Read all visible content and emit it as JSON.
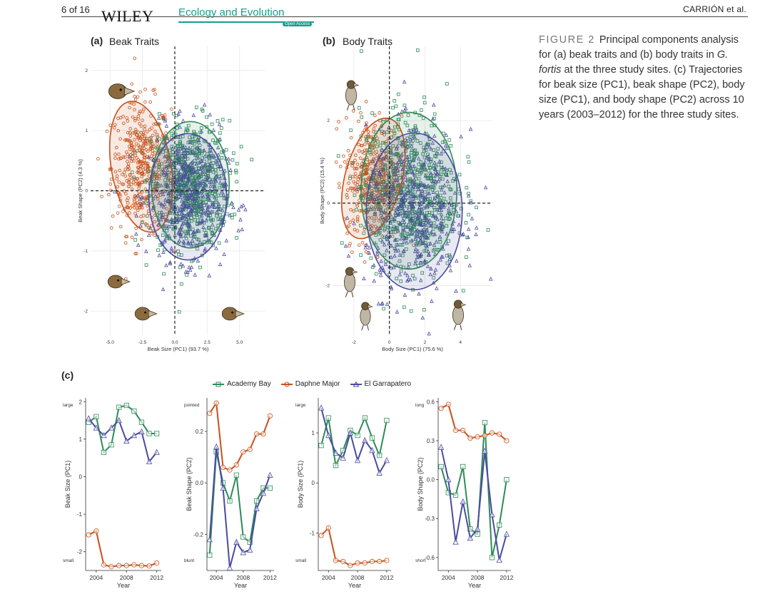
{
  "header": {
    "page_number": "6 of 16",
    "publisher": "WILEY",
    "journal": "Ecology and Evolution",
    "open_access": "Open Access",
    "running_author": "CARRIÓN et al."
  },
  "caption": {
    "label": "FIGURE 2",
    "text_1": "Principal components analysis for (a) beak traits and (b) body traits in ",
    "species": "G. fortis",
    "text_2": " at the three study sites. (c) Trajectories for beak size (PC1), beak shape (PC2), body size (PC1), and body shape (PC2) across 10 years (2003–2012) for the three study sites."
  },
  "panels": {
    "a": {
      "label": "(a)",
      "title": "Beak Traits",
      "xlabel": "Beak Size (PC1) (93.7 %)",
      "ylabel": "Beak Shape (PC2) (4.3 %)"
    },
    "b": {
      "label": "(b)",
      "title": "Body Traits",
      "xlabel": "Body Size (PC1) (75.6 %)",
      "ylabel": "Body Shape (PC2) (15.4 %)"
    },
    "c": {
      "label": "(c)"
    }
  },
  "legend": [
    "Academy Bay",
    "Daphne Major",
    "El Garrapatero"
  ],
  "colors": {
    "academy_bay": "#2e8b57",
    "daphne_major": "#c8501a",
    "el_garrapatero": "#4a4aa0"
  },
  "chart_data": [
    {
      "type": "scatter",
      "panel": "a",
      "title": "Beak Traits",
      "xlabel": "Beak Size (PC1) (93.7 %)",
      "ylabel": "Beak Shape (PC2) (4.3 %)",
      "x_ticks": [
        "-5.0",
        "-2.5",
        "0.0",
        "2.5",
        "5.0"
      ],
      "y_ticks": [
        "2",
        "1",
        "0",
        "-1",
        "-2"
      ],
      "xlim": [
        -6.5,
        7.0
      ],
      "ylim": [
        -2.4,
        2.4
      ],
      "series": [
        {
          "name": "Daphne Major",
          "marker": "circle",
          "center": [
            -2.6,
            0.4
          ],
          "ellipse_rx": 2.3,
          "ellipse_ry": 1.1
        },
        {
          "name": "Academy Bay",
          "marker": "square",
          "center": [
            1.2,
            0.1
          ],
          "ellipse_rx": 3.0,
          "ellipse_ry": 1.05
        },
        {
          "name": "El Garrapatero",
          "marker": "triangle",
          "center": [
            1.0,
            -0.1
          ],
          "ellipse_rx": 3.0,
          "ellipse_ry": 1.05
        }
      ]
    },
    {
      "type": "scatter",
      "panel": "b",
      "title": "Body Traits",
      "xlabel": "Body Size (PC1) (75.6 %)",
      "ylabel": "Body Shape (PC2) (15.4 %)",
      "x_ticks": [
        "-2",
        "0",
        "2",
        "4"
      ],
      "y_ticks": [
        "2",
        "0",
        "-2"
      ],
      "xlim": [
        -3.2,
        5.8
      ],
      "ylim": [
        -3.2,
        3.8
      ],
      "series": [
        {
          "name": "Daphne Major",
          "marker": "circle",
          "center": [
            -0.9,
            0.6
          ],
          "ellipse_rx": 1.6,
          "ellipse_ry": 1.5
        },
        {
          "name": "Academy Bay",
          "marker": "square",
          "center": [
            1.1,
            0.3
          ],
          "ellipse_rx": 2.7,
          "ellipse_ry": 1.9
        },
        {
          "name": "El Garrapatero",
          "marker": "triangle",
          "center": [
            1.4,
            -0.2
          ],
          "ellipse_rx": 2.7,
          "ellipse_ry": 1.9
        }
      ]
    },
    {
      "type": "line",
      "panel": "c1",
      "xlabel": "Year",
      "ylabel": "Beak Size (PC1)",
      "top_label": "large",
      "bottom_label": "small",
      "x": [
        2003,
        2004,
        2005,
        2006,
        2007,
        2008,
        2009,
        2010,
        2011,
        2012
      ],
      "x_ticks": [
        "2004",
        "2008",
        "2012"
      ],
      "y_ticks": [
        "2",
        "1",
        "0",
        "-1",
        "-2"
      ],
      "ylim": [
        -2.5,
        2.1
      ],
      "series": [
        {
          "name": "Academy Bay",
          "values": [
            1.45,
            1.6,
            0.65,
            0.85,
            1.85,
            1.9,
            1.75,
            1.45,
            1.15,
            1.15
          ]
        },
        {
          "name": "Daphne Major",
          "values": [
            -1.55,
            -1.45,
            -2.35,
            -2.4,
            -2.37,
            -2.37,
            -2.35,
            -2.37,
            -2.38,
            -2.3
          ]
        },
        {
          "name": "El Garrapatero",
          "values": [
            1.55,
            1.3,
            1.1,
            1.3,
            1.5,
            0.95,
            1.1,
            1.2,
            0.4,
            0.65
          ]
        }
      ]
    },
    {
      "type": "line",
      "panel": "c2",
      "xlabel": "Year",
      "ylabel": "Beak Shape (PC2)",
      "top_label": "pointed",
      "bottom_label": "blunt",
      "x": [
        2003,
        2004,
        2005,
        2006,
        2007,
        2008,
        2009,
        2010,
        2011,
        2012
      ],
      "x_ticks": [
        "2004",
        "2008",
        "2012"
      ],
      "y_ticks": [
        "0.2",
        "0.0",
        "-0.2"
      ],
      "ylim": [
        -0.34,
        0.33
      ],
      "series": [
        {
          "name": "Academy Bay",
          "values": [
            -0.28,
            0.12,
            0.0,
            -0.07,
            0.03,
            -0.21,
            -0.23,
            -0.07,
            -0.02,
            -0.02
          ]
        },
        {
          "name": "Daphne Major",
          "values": [
            0.27,
            0.31,
            0.06,
            0.05,
            0.07,
            0.12,
            0.13,
            0.19,
            0.19,
            0.26
          ]
        },
        {
          "name": "El Garrapatero",
          "values": [
            -0.22,
            0.14,
            -0.02,
            -0.33,
            -0.23,
            -0.27,
            -0.26,
            -0.1,
            -0.04,
            0.03
          ]
        }
      ]
    },
    {
      "type": "line",
      "panel": "c3",
      "xlabel": "Year",
      "ylabel": "Body Size (PC1)",
      "top_label": "large",
      "bottom_label": "small",
      "x": [
        2003,
        2004,
        2005,
        2006,
        2007,
        2008,
        2009,
        2010,
        2011,
        2012
      ],
      "x_ticks": [
        "2004",
        "2008",
        "2012"
      ],
      "y_ticks": [
        "1",
        "0",
        "-1"
      ],
      "ylim": [
        -1.75,
        1.7
      ],
      "series": [
        {
          "name": "Academy Bay",
          "values": [
            0.75,
            1.3,
            0.35,
            0.65,
            1.05,
            0.95,
            1.3,
            0.9,
            0.55,
            1.25
          ]
        },
        {
          "name": "Daphne Major",
          "values": [
            -1.05,
            -0.9,
            -1.55,
            -1.57,
            -1.65,
            -1.6,
            -1.6,
            -1.57,
            -1.57,
            -1.55
          ]
        },
        {
          "name": "El Garrapatero",
          "values": [
            1.5,
            0.95,
            0.6,
            0.5,
            1.0,
            0.45,
            0.85,
            0.65,
            0.2,
            0.45
          ]
        }
      ]
    },
    {
      "type": "line",
      "panel": "c4",
      "xlabel": "Year",
      "ylabel": "Body Shape (PC2)",
      "top_label": "long",
      "bottom_label": "short",
      "x": [
        2003,
        2004,
        2005,
        2006,
        2007,
        2008,
        2009,
        2010,
        2011,
        2012
      ],
      "x_ticks": [
        "2004",
        "2008",
        "2012"
      ],
      "y_ticks": [
        "0.6",
        "0.3",
        "0.0",
        "-0.3",
        "-0.6"
      ],
      "ylim": [
        -0.7,
        0.63
      ],
      "series": [
        {
          "name": "Academy Bay",
          "values": [
            0.1,
            -0.1,
            -0.12,
            0.1,
            -0.38,
            -0.42,
            0.44,
            -0.6,
            -0.35,
            0.0
          ]
        },
        {
          "name": "Daphne Major",
          "values": [
            0.55,
            0.58,
            0.38,
            0.38,
            0.32,
            0.33,
            0.34,
            0.36,
            0.35,
            0.3
          ]
        },
        {
          "name": "El Garrapatero",
          "values": [
            0.25,
            0.0,
            -0.48,
            -0.17,
            -0.45,
            -0.38,
            0.22,
            -0.27,
            -0.62,
            -0.42
          ]
        }
      ]
    }
  ]
}
